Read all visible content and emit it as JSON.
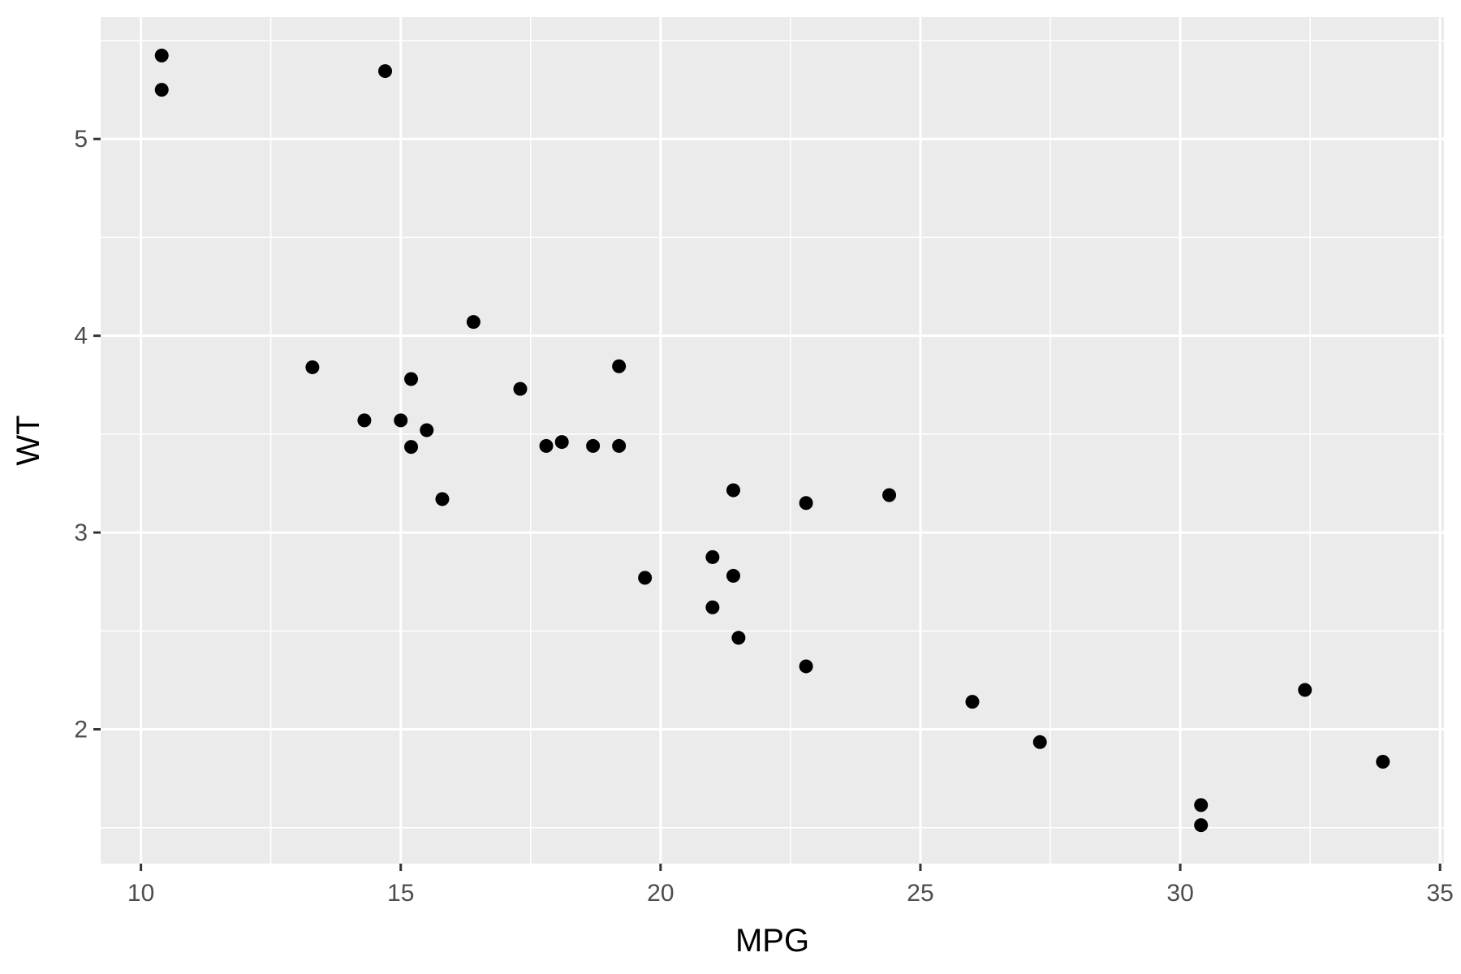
{
  "chart_data": {
    "type": "scatter",
    "title": "",
    "xlabel": "MPG",
    "ylabel": "WT",
    "xlim": [
      9.225,
      35.075
    ],
    "ylim": [
      1.3175,
      5.6196
    ],
    "x_ticks": [
      10,
      15,
      20,
      25,
      30,
      35
    ],
    "y_ticks": [
      2,
      3,
      4,
      5
    ],
    "x_tick_labels": [
      "10",
      "15",
      "20",
      "25",
      "30",
      "35"
    ],
    "y_tick_labels": [
      "2",
      "3",
      "4",
      "5"
    ],
    "grid": true,
    "panel_background": "#ebebeb",
    "grid_color": "#ffffff",
    "point_color": "#000000",
    "points": [
      [
        21.0,
        2.62
      ],
      [
        21.0,
        2.875
      ],
      [
        22.8,
        2.32
      ],
      [
        21.4,
        3.215
      ],
      [
        18.7,
        3.44
      ],
      [
        18.1,
        3.46
      ],
      [
        14.3,
        3.57
      ],
      [
        24.4,
        3.19
      ],
      [
        22.8,
        3.15
      ],
      [
        19.2,
        3.44
      ],
      [
        17.8,
        3.44
      ],
      [
        16.4,
        4.07
      ],
      [
        17.3,
        3.73
      ],
      [
        15.2,
        3.78
      ],
      [
        10.4,
        5.25
      ],
      [
        10.4,
        5.424
      ],
      [
        14.7,
        5.345
      ],
      [
        32.4,
        2.2
      ],
      [
        30.4,
        1.615
      ],
      [
        33.9,
        1.835
      ],
      [
        21.5,
        2.465
      ],
      [
        15.5,
        3.52
      ],
      [
        15.2,
        3.435
      ],
      [
        13.3,
        3.84
      ],
      [
        19.2,
        3.845
      ],
      [
        27.3,
        1.935
      ],
      [
        26.0,
        2.14
      ],
      [
        30.4,
        1.513
      ],
      [
        15.8,
        3.17
      ],
      [
        19.7,
        2.77
      ],
      [
        15.0,
        3.57
      ],
      [
        21.4,
        2.78
      ]
    ]
  }
}
